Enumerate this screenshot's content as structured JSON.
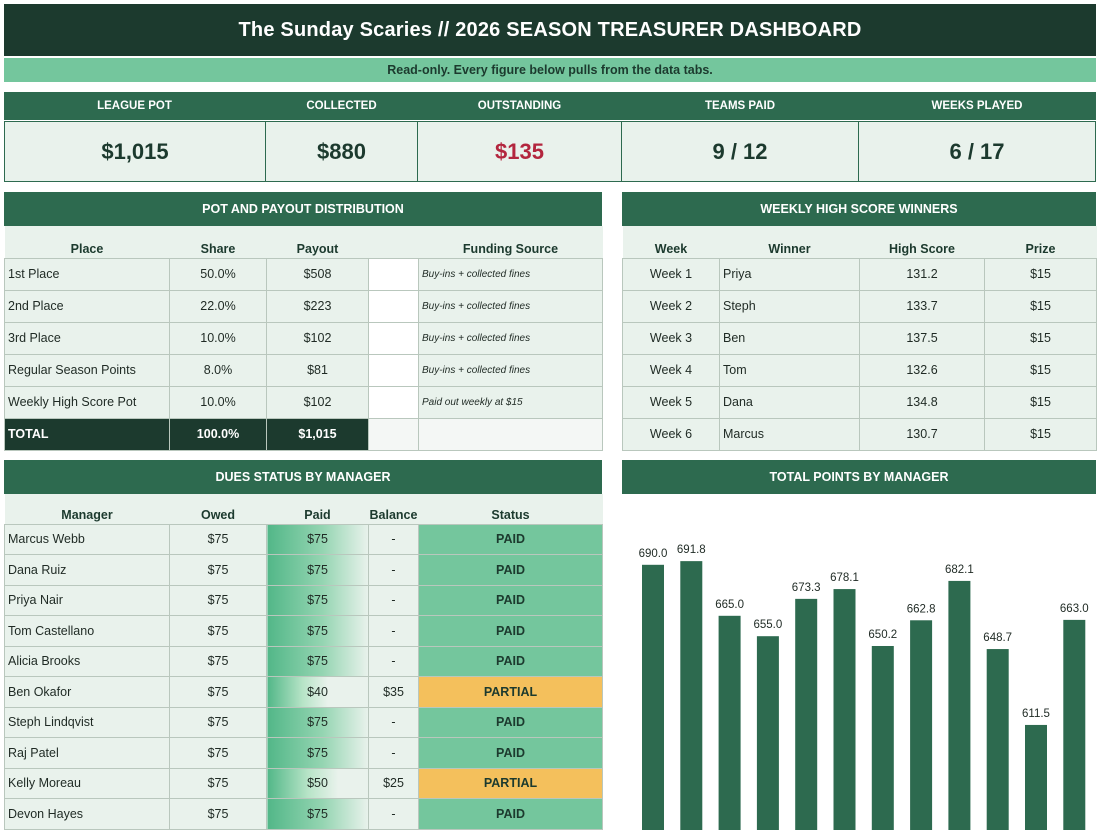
{
  "title": "The Sunday Scaries  //  2026 SEASON TREASURER DASHBOARD",
  "subtitle": "Read-only. Every figure below pulls from the data tabs.",
  "kpis": [
    {
      "label": "LEAGUE POT",
      "value": "$1,015"
    },
    {
      "label": "COLLECTED",
      "value": "$880"
    },
    {
      "label": "OUTSTANDING",
      "value": "$135"
    },
    {
      "label": "TEAMS PAID",
      "value": "9 / 12"
    },
    {
      "label": "WEEKS PLAYED",
      "value": "6 / 17"
    }
  ],
  "pot": {
    "title": "POT AND PAYOUT DISTRIBUTION",
    "headers": [
      "Place",
      "Share",
      "Payout",
      "",
      "Funding Source"
    ],
    "rows": [
      {
        "place": "1st Place",
        "share": "50.0%",
        "payout": "$508",
        "source": "Buy-ins + collected fines"
      },
      {
        "place": "2nd Place",
        "share": "22.0%",
        "payout": "$223",
        "source": "Buy-ins + collected fines"
      },
      {
        "place": "3rd Place",
        "share": "10.0%",
        "payout": "$102",
        "source": "Buy-ins + collected fines"
      },
      {
        "place": "Regular Season Points",
        "share": "8.0%",
        "payout": "$81",
        "source": "Buy-ins + collected fines"
      },
      {
        "place": "Weekly High Score Pot",
        "share": "10.0%",
        "payout": "$102",
        "source": "Paid out weekly at $15"
      }
    ],
    "total": {
      "place": "TOTAL",
      "share": "100.0%",
      "payout": "$1,015"
    }
  },
  "weekly": {
    "title": "WEEKLY HIGH SCORE WINNERS",
    "headers": [
      "Week",
      "Winner",
      "High Score",
      "Prize"
    ],
    "rows": [
      {
        "week": "Week 1",
        "winner": "Priya",
        "score": "131.2",
        "prize": "$15"
      },
      {
        "week": "Week 2",
        "winner": "Steph",
        "score": "133.7",
        "prize": "$15"
      },
      {
        "week": "Week 3",
        "winner": "Ben",
        "score": "137.5",
        "prize": "$15"
      },
      {
        "week": "Week 4",
        "winner": "Tom",
        "score": "132.6",
        "prize": "$15"
      },
      {
        "week": "Week 5",
        "winner": "Dana",
        "score": "134.8",
        "prize": "$15"
      },
      {
        "week": "Week 6",
        "winner": "Marcus",
        "score": "130.7",
        "prize": "$15"
      }
    ]
  },
  "dues": {
    "title": "DUES STATUS BY MANAGER",
    "headers": [
      "Manager",
      "Owed",
      "Paid",
      "Balance",
      "Status"
    ],
    "rows": [
      {
        "manager": "Marcus Webb",
        "owed": "$75",
        "paid": "$75",
        "balance": "-",
        "status": "PAID"
      },
      {
        "manager": "Dana Ruiz",
        "owed": "$75",
        "paid": "$75",
        "balance": "-",
        "status": "PAID"
      },
      {
        "manager": "Priya Nair",
        "owed": "$75",
        "paid": "$75",
        "balance": "-",
        "status": "PAID"
      },
      {
        "manager": "Tom Castellano",
        "owed": "$75",
        "paid": "$75",
        "balance": "-",
        "status": "PAID"
      },
      {
        "manager": "Alicia Brooks",
        "owed": "$75",
        "paid": "$75",
        "balance": "-",
        "status": "PAID"
      },
      {
        "manager": "Ben Okafor",
        "owed": "$75",
        "paid": "$40",
        "balance": "$35",
        "status": "PARTIAL"
      },
      {
        "manager": "Steph Lindqvist",
        "owed": "$75",
        "paid": "$75",
        "balance": "-",
        "status": "PAID"
      },
      {
        "manager": "Raj Patel",
        "owed": "$75",
        "paid": "$75",
        "balance": "-",
        "status": "PAID"
      },
      {
        "manager": "Kelly Moreau",
        "owed": "$75",
        "paid": "$50",
        "balance": "$25",
        "status": "PARTIAL"
      },
      {
        "manager": "Devon Hayes",
        "owed": "$75",
        "paid": "$75",
        "balance": "-",
        "status": "PAID"
      }
    ]
  },
  "points_title": "TOTAL POINTS BY MANAGER",
  "chart_data": {
    "type": "bar",
    "title": "TOTAL POINTS BY MANAGER",
    "values": [
      690.0,
      691.8,
      665.0,
      655.0,
      673.3,
      678.1,
      650.2,
      662.8,
      682.1,
      648.7,
      611.5,
      663.0
    ],
    "labels": [
      "690.0",
      "691.8",
      "665.0",
      "655.0",
      "673.3",
      "678.1",
      "650.2",
      "662.8",
      "682.1",
      "648.7",
      "611.5",
      "663.0"
    ],
    "ylim": [
      560,
      710
    ],
    "grid": false,
    "color": "#2d6a4f"
  },
  "colors": {
    "dark": "#1c3a2e",
    "header": "#2d6a4f",
    "accent": "#74c69d",
    "cell": "#e9f2ec",
    "outstanding": "#b3263e",
    "partial": "#f4c05c"
  }
}
